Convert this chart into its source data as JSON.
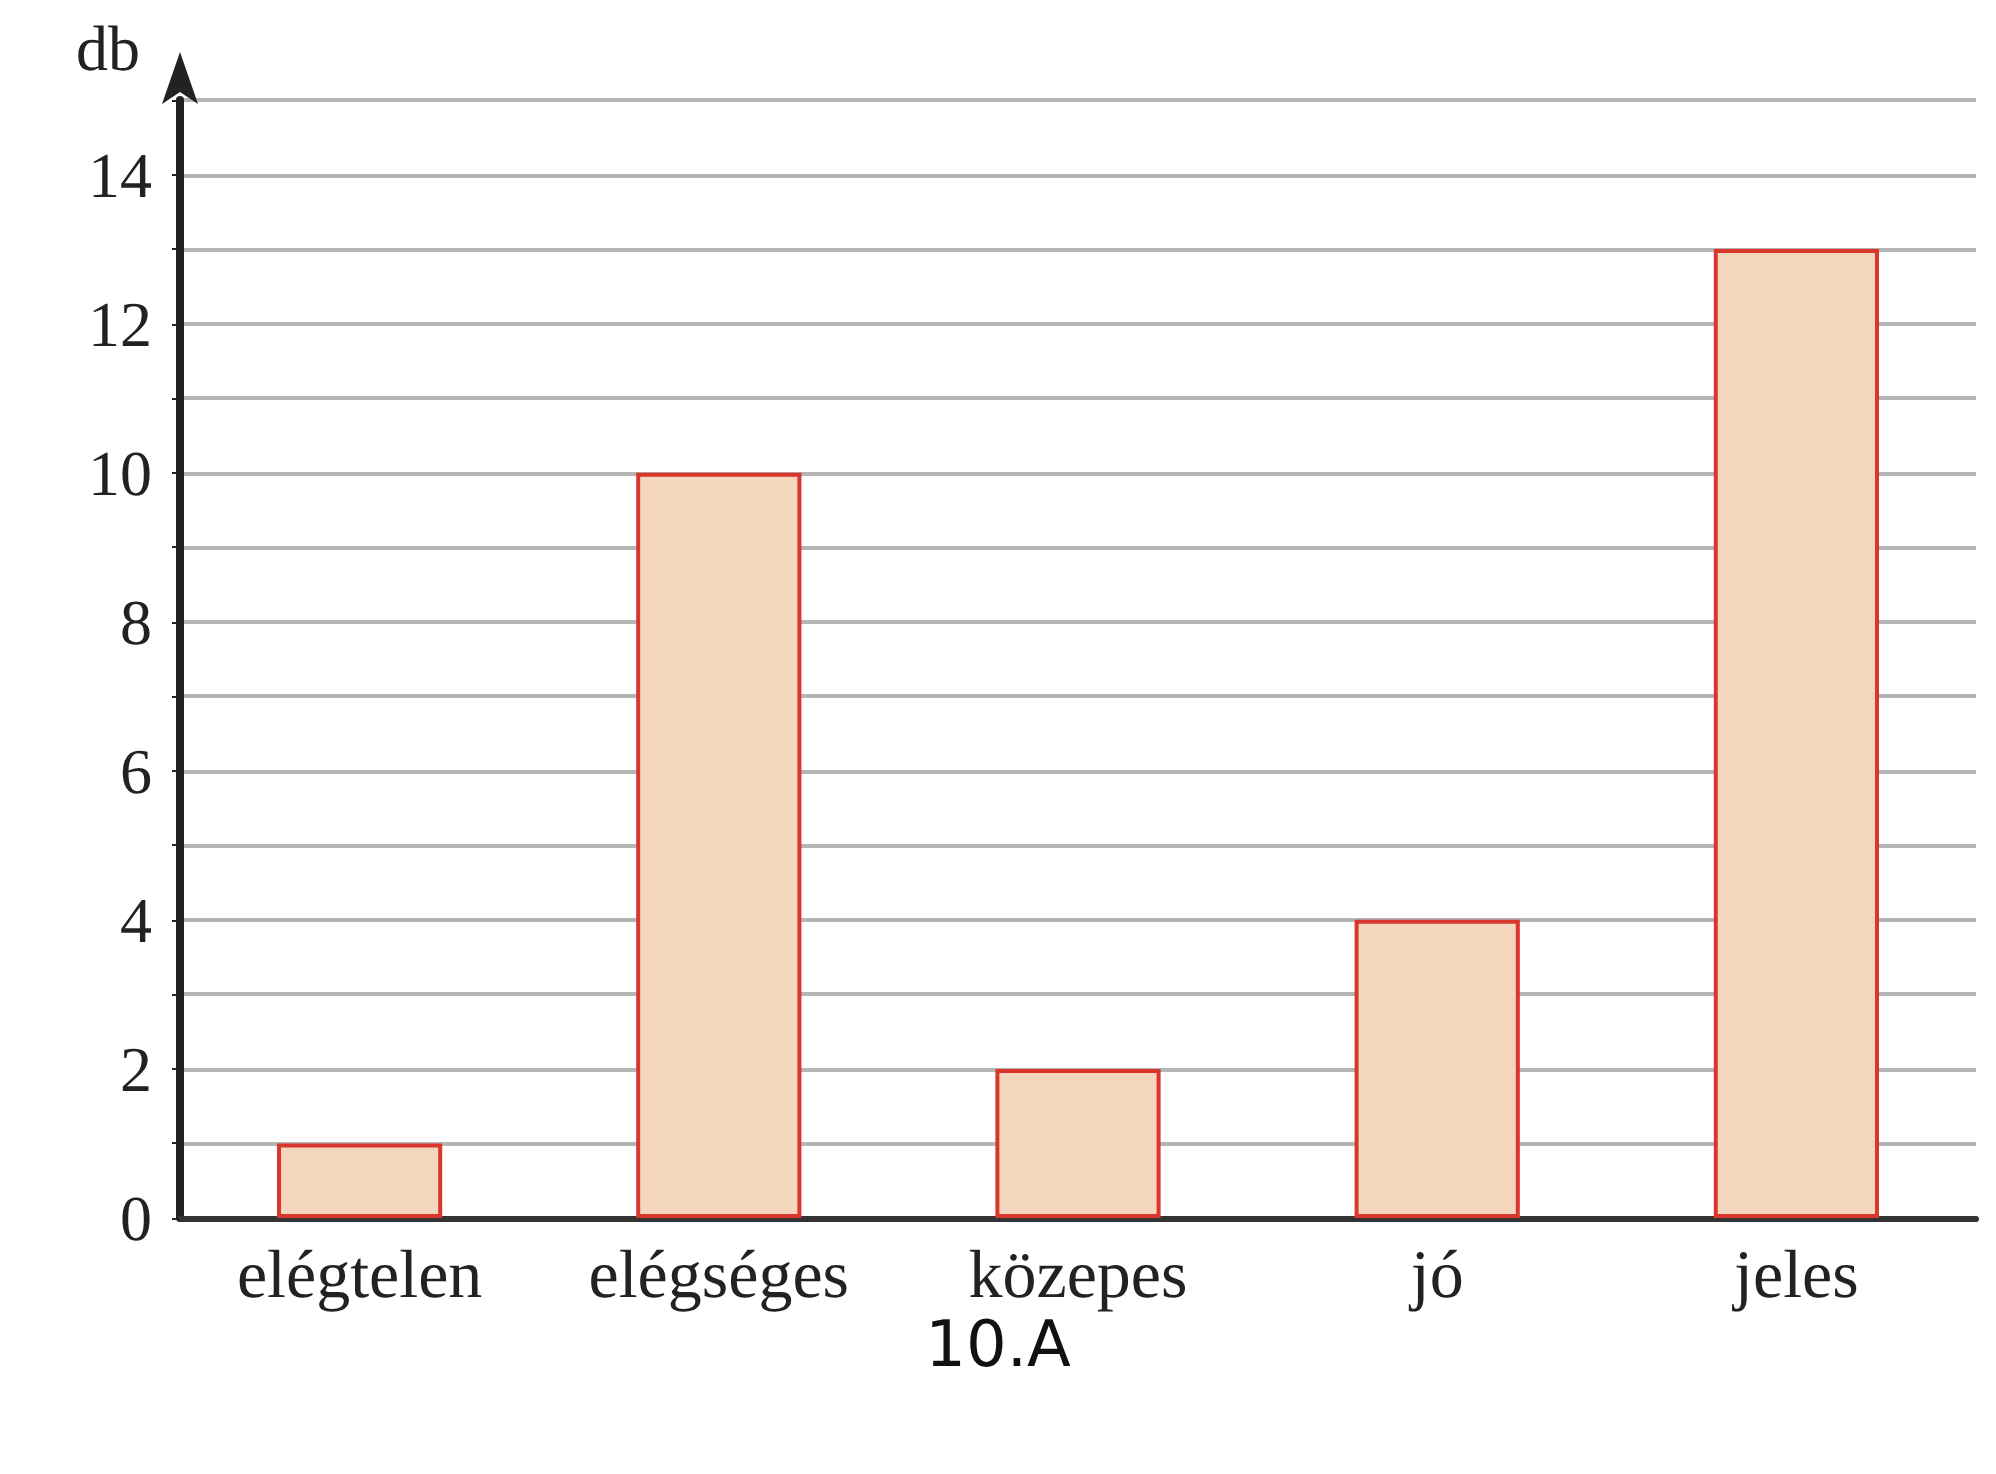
{
  "chart_data": {
    "type": "bar",
    "xlabel": "10.A",
    "ylabel": "db",
    "categories": [
      "elégtelen",
      "elégséges",
      "közepes",
      "jó",
      "jeles"
    ],
    "values": [
      1,
      10,
      2,
      4,
      13
    ],
    "color": "#f3d6bb",
    "ylim": [
      0,
      15
    ],
    "yticks": [
      0,
      {
        "value": 1,
        "label": null
      },
      2,
      {
        "value": 3,
        "label": null
      },
      4,
      {
        "value": 5,
        "label": null
      },
      6,
      {
        "value": 7,
        "label": null
      },
      8,
      {
        "value": 9,
        "label": null
      },
      10,
      {
        "value": 11,
        "label": null
      },
      12,
      {
        "value": 13,
        "label": null
      },
      14,
      {
        "value": 15,
        "label": null
      }
    ],
    "grid": "y"
  }
}
